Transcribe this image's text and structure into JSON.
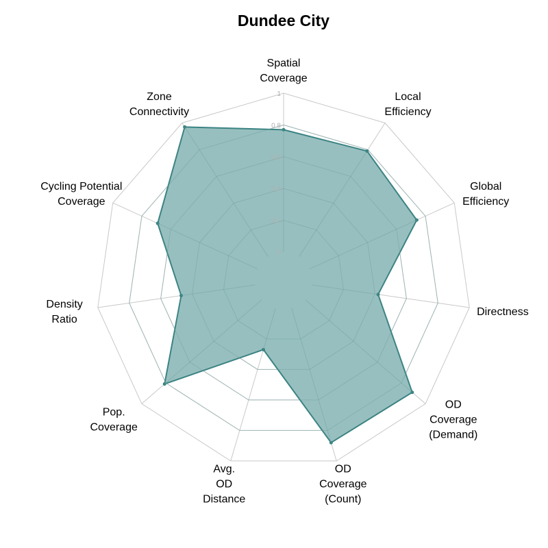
{
  "chart_data": {
    "type": "radar",
    "title": "Dundee City",
    "axes": [
      [
        "Spatial",
        "Coverage"
      ],
      [
        "Local",
        "Efficiency"
      ],
      [
        "Global",
        "Efficiency"
      ],
      [
        "Directness"
      ],
      [
        "OD",
        "Coverage",
        "(Demand)"
      ],
      [
        "OD",
        "Coverage",
        "(Count)"
      ],
      [
        "Avg.",
        "OD",
        "Distance"
      ],
      [
        "Pop.",
        "Coverage"
      ],
      [
        "Density",
        "Ratio"
      ],
      [
        "Cycling Potential",
        "Coverage"
      ],
      [
        "Zone",
        "Connectivity"
      ]
    ],
    "series": [
      {
        "values": [
          0.77,
          0.79,
          0.74,
          0.42,
          0.89,
          0.88,
          0.27,
          0.81,
          0.47,
          0.69,
          0.97
        ]
      }
    ],
    "rlim": [
      0,
      1
    ],
    "ticks": [
      "0",
      "0.2",
      "0.4",
      "0.6",
      "0.8",
      "1"
    ],
    "tick_values": [
      0,
      0.2,
      0.4,
      0.6,
      0.8,
      1
    ],
    "grid": true,
    "colors": {
      "fill": "#98bfbf",
      "stroke": "#3b8383",
      "grid": "#c8c8c8",
      "tick_text": "#b0b0b0"
    }
  }
}
